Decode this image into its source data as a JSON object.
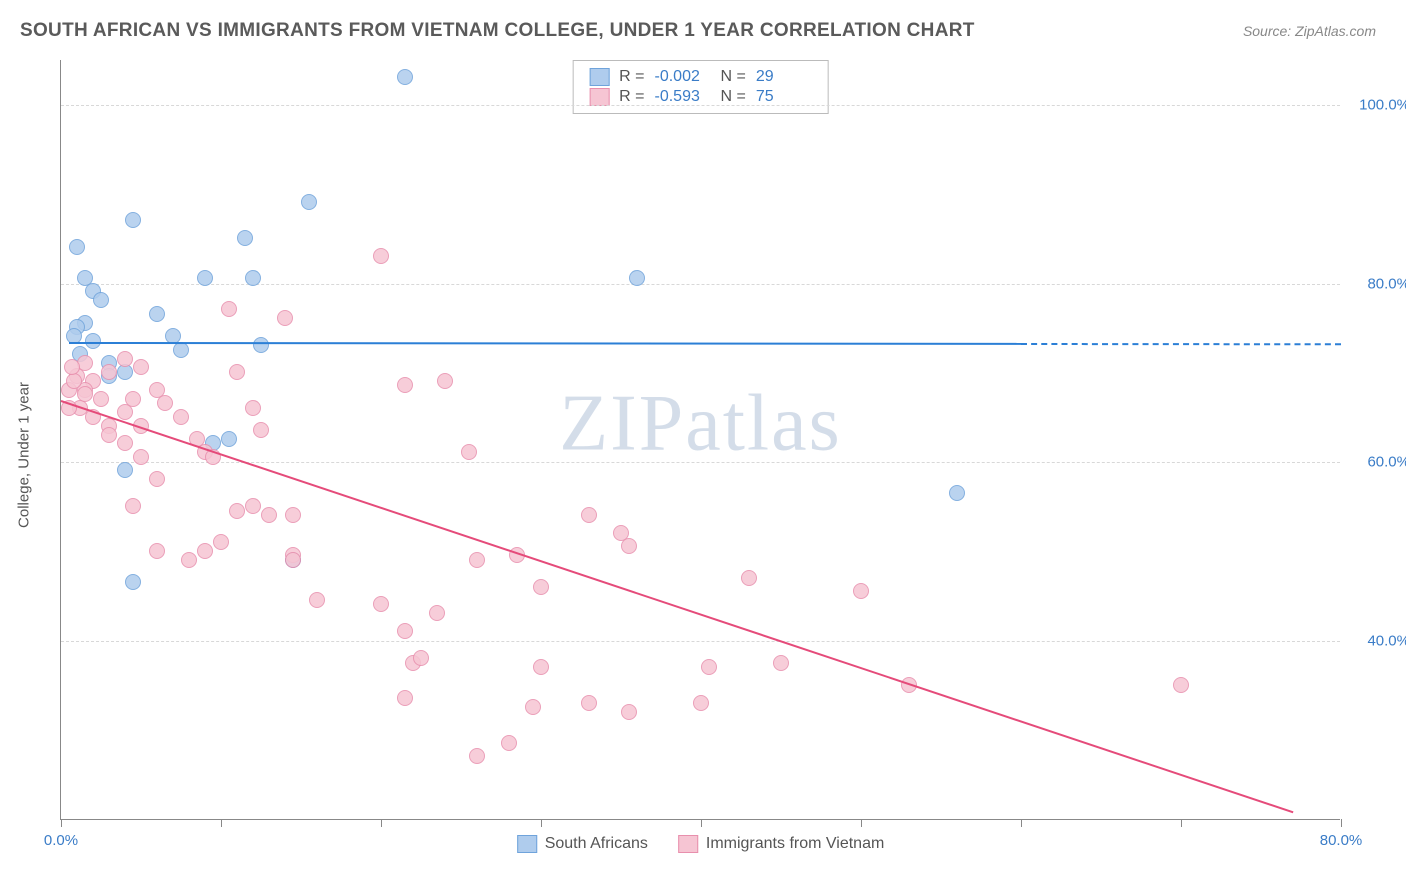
{
  "title": "SOUTH AFRICAN VS IMMIGRANTS FROM VIETNAM COLLEGE, UNDER 1 YEAR CORRELATION CHART",
  "source": "Source: ZipAtlas.com",
  "watermark": "ZIPatlas",
  "chart": {
    "type": "scatter",
    "y_label": "College, Under 1 year",
    "xlim": [
      0,
      80
    ],
    "ylim": [
      20,
      105
    ],
    "x_ticks": [
      0,
      10,
      20,
      30,
      40,
      50,
      60,
      70,
      80
    ],
    "x_tick_labels": {
      "0": "0.0%",
      "80": "80.0%"
    },
    "y_grid": [
      40,
      60,
      80,
      100
    ],
    "y_tick_labels": {
      "40": "40.0%",
      "60": "60.0%",
      "80": "80.0%",
      "100": "100.0%"
    },
    "grid_color": "#d8d8d8",
    "axis_color": "#888888",
    "tick_label_color": "#3a7cc7",
    "label_fontsize": 15,
    "background_color": "#ffffff",
    "marker_radius": 8,
    "series": [
      {
        "name": "South Africans",
        "color_fill": "#afcced",
        "color_stroke": "#6fa3db",
        "R": "-0.002",
        "N": "29",
        "trend": {
          "x1": 0.5,
          "y1": 73.5,
          "x2": 60,
          "y2": 73.4,
          "x2_dash": 80,
          "color": "#2b7fd6"
        },
        "points": [
          [
            21.5,
            103
          ],
          [
            4.5,
            87
          ],
          [
            1,
            84
          ],
          [
            1.5,
            80.5
          ],
          [
            2,
            79
          ],
          [
            2.5,
            78
          ],
          [
            2,
            73.5
          ],
          [
            1.5,
            75.5
          ],
          [
            1,
            75
          ],
          [
            6,
            76.5
          ],
          [
            9,
            80.5
          ],
          [
            11.5,
            85
          ],
          [
            12,
            80.5
          ],
          [
            12.5,
            73
          ],
          [
            7,
            74
          ],
          [
            7.5,
            72.5
          ],
          [
            15.5,
            89
          ],
          [
            3,
            71
          ],
          [
            4,
            70
          ],
          [
            36,
            80.5
          ],
          [
            10.5,
            62.5
          ],
          [
            9.5,
            62
          ],
          [
            3,
            69.5
          ],
          [
            4,
            59
          ],
          [
            0.8,
            74
          ],
          [
            1.2,
            72
          ],
          [
            14.5,
            49
          ],
          [
            4.5,
            46.5
          ],
          [
            56,
            56.5
          ]
        ]
      },
      {
        "name": "Immigrants from Vietnam",
        "color_fill": "#f6c5d3",
        "color_stroke": "#e88fad",
        "R": "-0.593",
        "N": "75",
        "trend": {
          "x1": 0,
          "y1": 67,
          "x2": 77,
          "y2": 21,
          "color": "#e54b7a"
        },
        "points": [
          [
            20,
            83
          ],
          [
            10.5,
            77
          ],
          [
            14,
            76
          ],
          [
            11,
            70
          ],
          [
            2,
            69
          ],
          [
            3,
            70
          ],
          [
            4,
            71.5
          ],
          [
            5,
            70.5
          ],
          [
            1,
            69.5
          ],
          [
            1.5,
            68
          ],
          [
            2.5,
            67
          ],
          [
            1.5,
            71
          ],
          [
            0.5,
            68
          ],
          [
            0.8,
            69
          ],
          [
            1.2,
            66
          ],
          [
            4.5,
            67
          ],
          [
            6,
            68
          ],
          [
            6.5,
            66.5
          ],
          [
            7.5,
            65
          ],
          [
            5,
            64
          ],
          [
            8.5,
            62.5
          ],
          [
            9,
            61
          ],
          [
            9.5,
            60.5
          ],
          [
            24,
            69
          ],
          [
            21.5,
            68.5
          ],
          [
            12,
            66
          ],
          [
            12.5,
            63.5
          ],
          [
            3,
            64
          ],
          [
            4,
            62
          ],
          [
            5,
            60.5
          ],
          [
            6,
            58
          ],
          [
            4.5,
            55
          ],
          [
            12,
            55
          ],
          [
            11,
            54.5
          ],
          [
            6,
            50
          ],
          [
            13,
            54
          ],
          [
            14.5,
            54
          ],
          [
            14.5,
            49.5
          ],
          [
            14.5,
            49
          ],
          [
            8,
            49
          ],
          [
            9,
            50
          ],
          [
            10,
            51
          ],
          [
            16,
            44.5
          ],
          [
            25.5,
            61
          ],
          [
            26,
            49
          ],
          [
            28.5,
            49.5
          ],
          [
            20,
            44
          ],
          [
            21.5,
            41
          ],
          [
            22,
            37.5
          ],
          [
            21.5,
            33.5
          ],
          [
            22.5,
            38
          ],
          [
            23.5,
            43
          ],
          [
            30,
            46
          ],
          [
            33,
            54
          ],
          [
            28,
            28.5
          ],
          [
            26,
            27
          ],
          [
            30,
            37
          ],
          [
            29.5,
            32.5
          ],
          [
            33,
            33
          ],
          [
            35.5,
            32
          ],
          [
            35,
            52
          ],
          [
            35.5,
            50.5
          ],
          [
            40,
            33
          ],
          [
            40.5,
            37
          ],
          [
            43,
            47
          ],
          [
            45,
            37.5
          ],
          [
            50,
            45.5
          ],
          [
            53,
            35
          ],
          [
            70,
            35
          ],
          [
            0.7,
            70.5
          ],
          [
            1.5,
            67.5
          ],
          [
            2,
            65
          ],
          [
            3,
            63
          ],
          [
            4,
            65.5
          ],
          [
            0.5,
            66
          ]
        ]
      }
    ]
  }
}
